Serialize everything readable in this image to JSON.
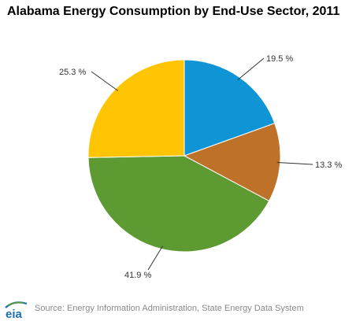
{
  "chart_data": {
    "type": "pie",
    "title": "Alabama Energy Consumption by End-Use Sector, 2011",
    "slices": [
      {
        "value": 19.5,
        "label": "19.5 %",
        "color": "#0f95d6"
      },
      {
        "value": 13.3,
        "label": "13.3 %",
        "color": "#bd7129"
      },
      {
        "value": 41.9,
        "label": "41.9 %",
        "color": "#5e9a32"
      },
      {
        "value": 25.3,
        "label": "25.3 %",
        "color": "#ffc404"
      }
    ],
    "start_angle": "12 o'clock",
    "direction": "clockwise"
  },
  "footer": {
    "logo_text": "eia",
    "source": "Source: Energy Information Administration, State Energy Data System"
  }
}
